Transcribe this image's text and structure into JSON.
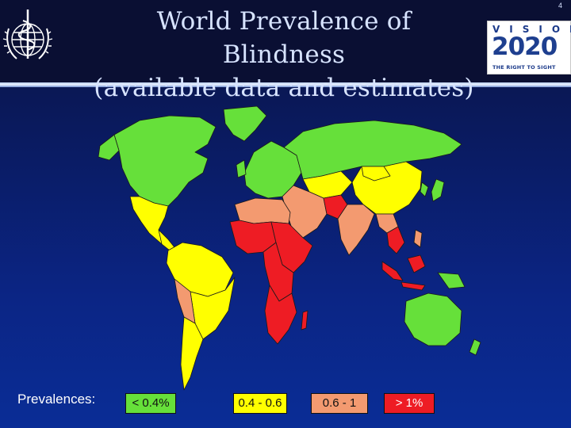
{
  "page_number": "4",
  "title": {
    "line1": "World Prevalence of Blindness",
    "line2": "(available data and estimates)"
  },
  "logos": {
    "left": "WHO emblem",
    "right": {
      "top": "VISION",
      "number": "2020",
      "tagline": "THE RIGHT TO SIGHT"
    }
  },
  "legend": {
    "title": "Prevalences:",
    "items": [
      {
        "label": "< 0.4%",
        "color": "#66e03a"
      },
      {
        "label": "0.4 - 0.6",
        "color": "#ffff00"
      },
      {
        "label": "0.6 - 1",
        "color": "#f39a70"
      },
      {
        "label": "> 1%",
        "color": "#ee1c24"
      }
    ]
  },
  "colors": {
    "background": "#0a2a8f",
    "header": "#0a0f33",
    "title_text": "#d7e3ff"
  }
}
